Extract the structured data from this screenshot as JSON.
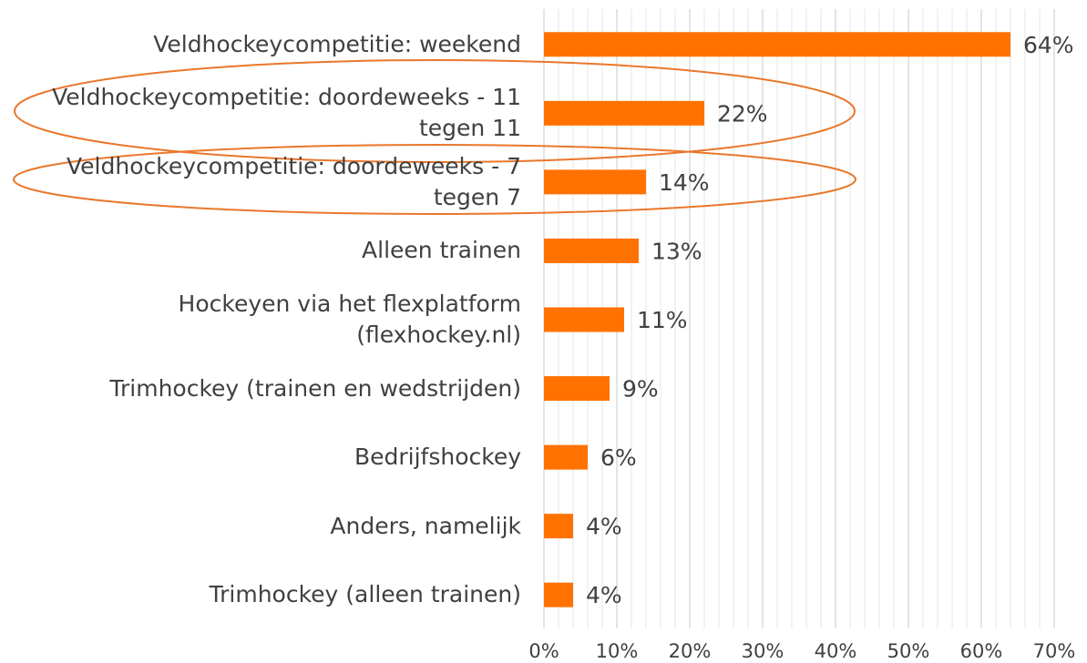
{
  "chart_data": {
    "type": "barh",
    "categories": [
      "Veldhockeycompetitie: weekend",
      "Veldhockeycompetitie: doordeweeks - 11 tegen 11",
      "Veldhockeycompetitie: doordeweeks - 7 tegen 7",
      "Alleen trainen",
      "Hockeyen via het flexplatform (flexhockey.nl)",
      "Trimhockey (trainen en wedstrijden)",
      "Bedrijfshockey",
      "Anders, namelijk",
      "Trimhockey (alleen trainen)"
    ],
    "values": [
      64,
      22,
      14,
      13,
      11,
      9,
      6,
      4,
      4
    ],
    "value_labels": [
      "64%",
      "22%",
      "14%",
      "13%",
      "11%",
      "9%",
      "6%",
      "4%",
      "4%"
    ],
    "color": "#ff7200",
    "xlim": [
      0,
      70
    ],
    "xticks": [
      {
        "value": 0,
        "label": "0%"
      },
      {
        "value": 10,
        "label": "10%"
      },
      {
        "value": 20,
        "label": "20%"
      },
      {
        "value": 30,
        "label": "30%"
      },
      {
        "value": 40,
        "label": "40%"
      },
      {
        "value": 50,
        "label": "50%"
      },
      {
        "value": 60,
        "label": "60%"
      },
      {
        "value": 70,
        "label": "70%"
      }
    ],
    "grid": true
  }
}
